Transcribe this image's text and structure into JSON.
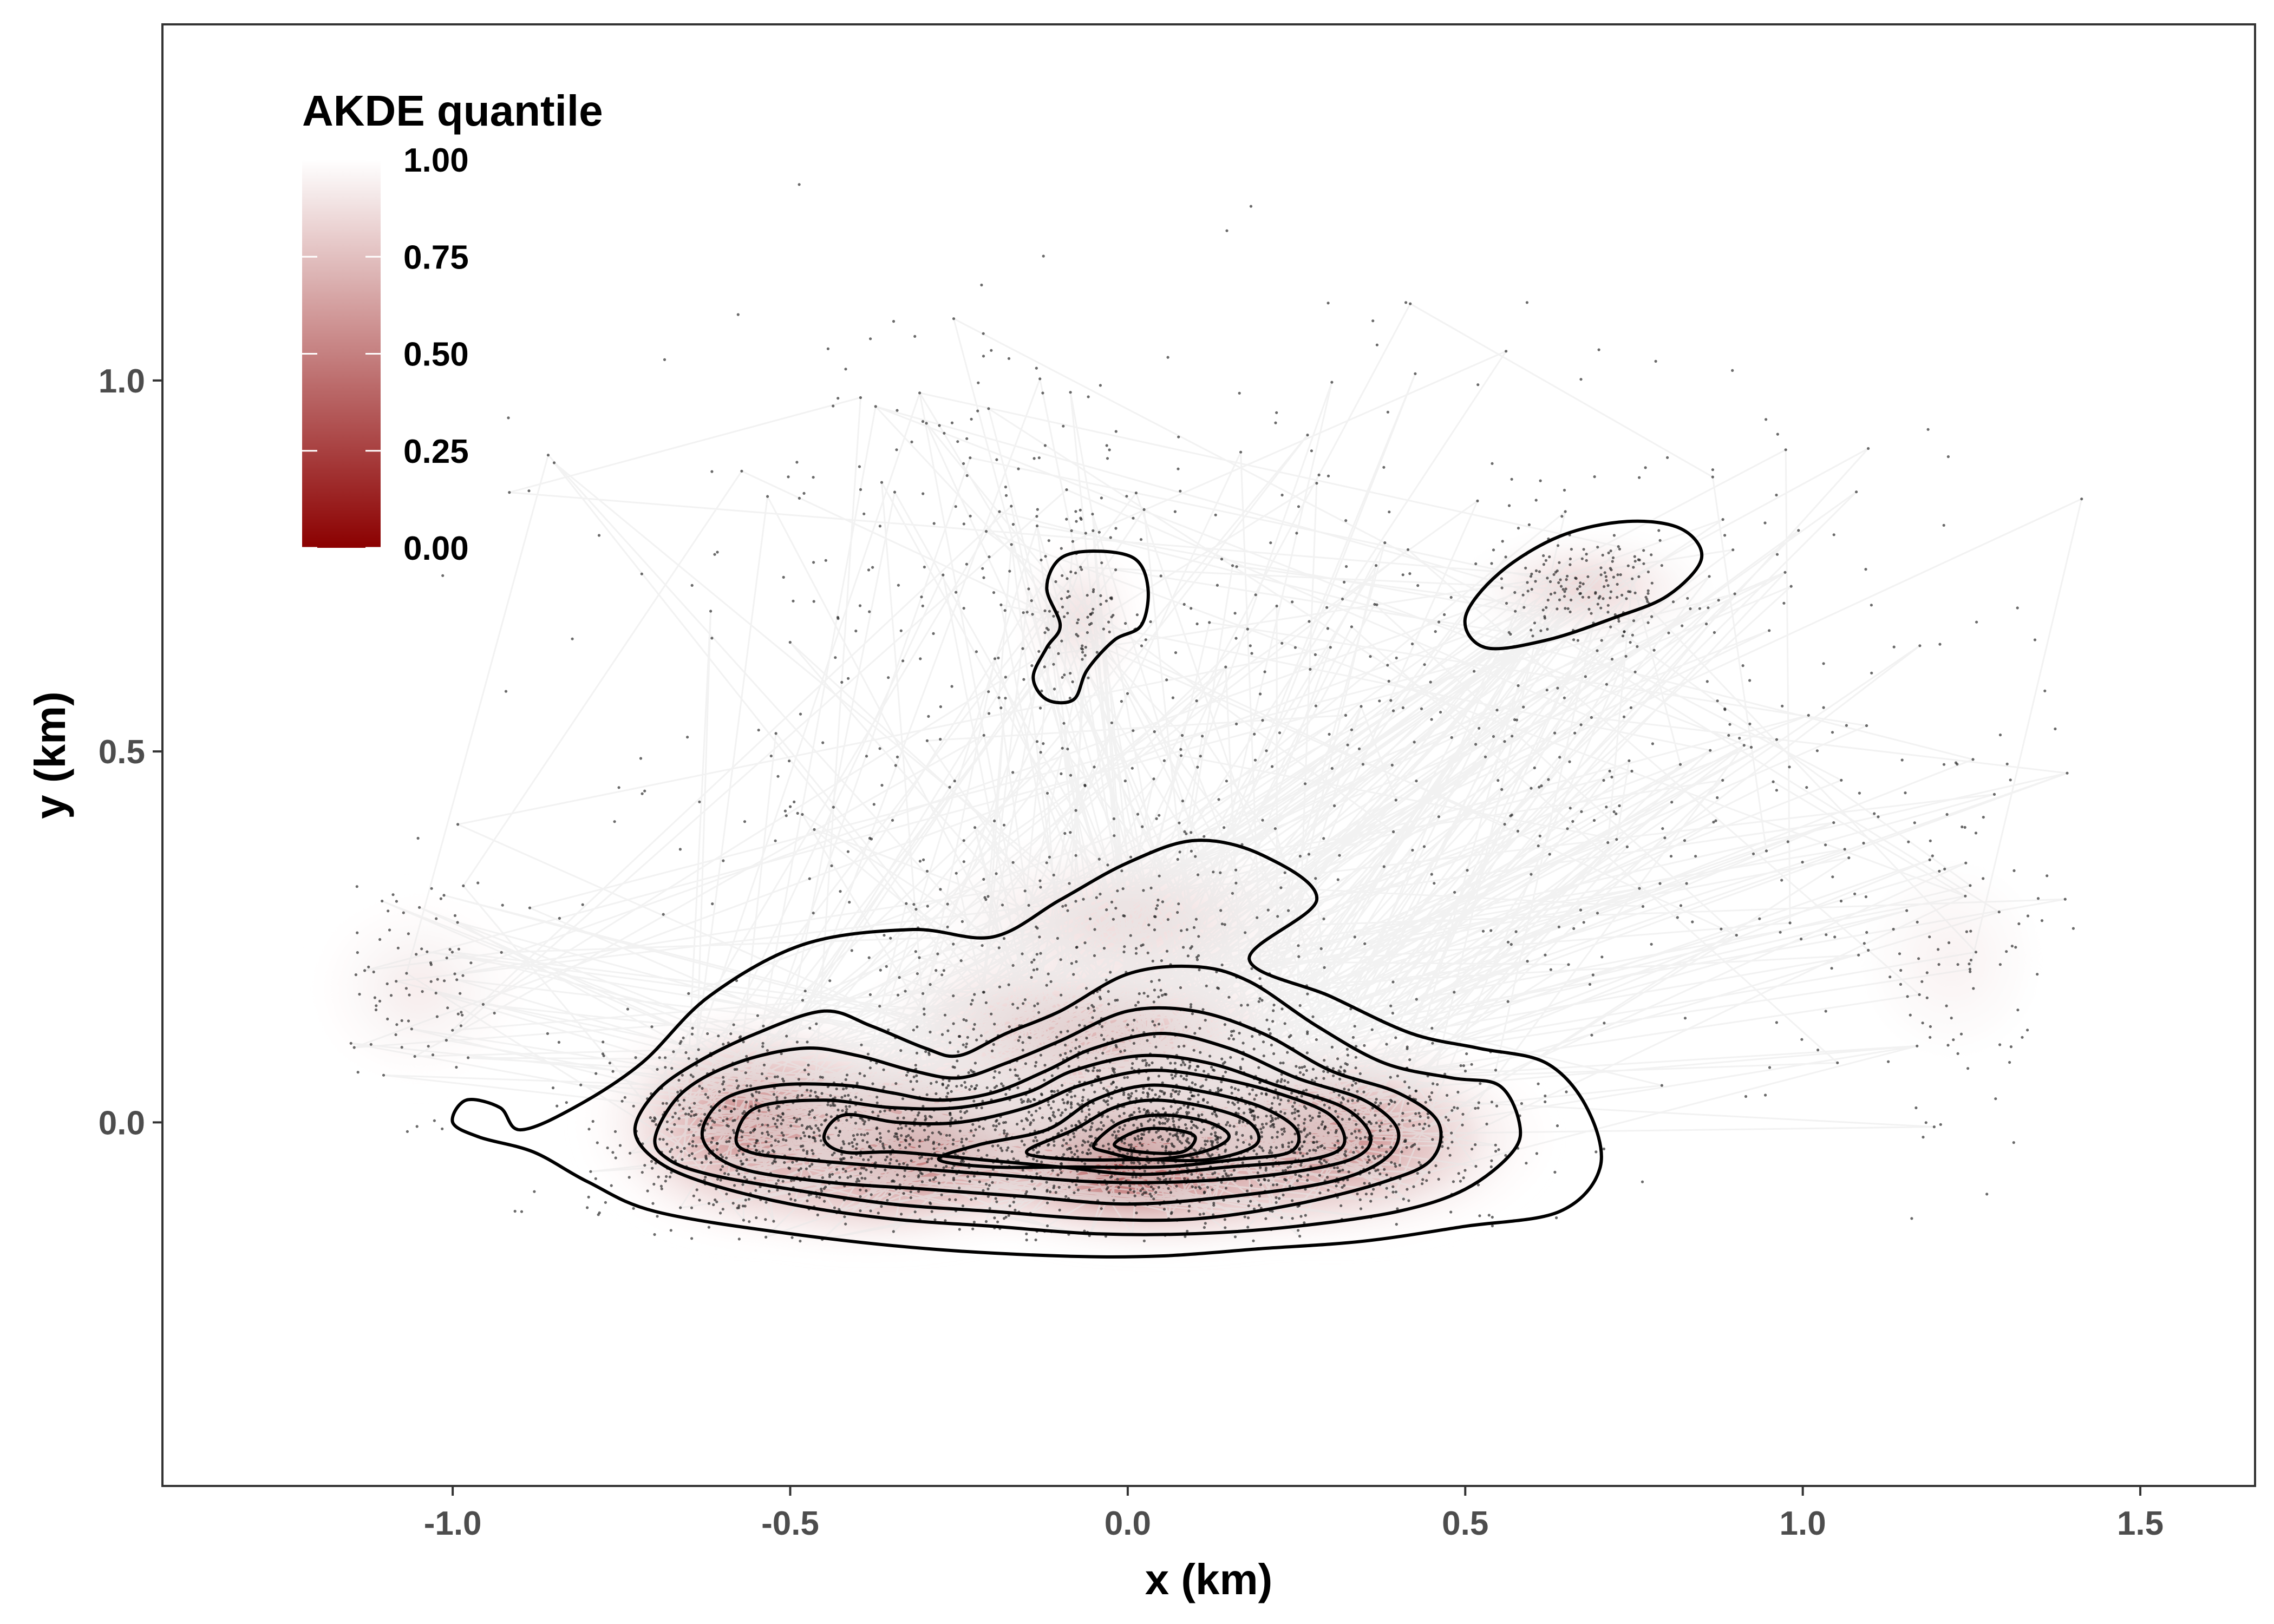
{
  "chart_data": {
    "type": "contour",
    "title": "",
    "xlabel": "x (km)",
    "ylabel": "y (km)",
    "xlim": [
      -1.43,
      1.67
    ],
    "ylim": [
      -0.49,
      1.48
    ],
    "x_ticks": [
      -1.0,
      -0.5,
      0.0,
      0.5,
      1.0,
      1.5
    ],
    "x_tick_labels": [
      "-1.0",
      "-0.5",
      "0.0",
      "0.5",
      "1.0",
      "1.5"
    ],
    "y_ticks": [
      0.0,
      0.5,
      1.0
    ],
    "y_tick_labels": [
      "0.0",
      "0.5",
      "1.0"
    ],
    "grid": false,
    "legend": {
      "title": "AKDE quantile",
      "placement": "top-left",
      "range": [
        0,
        1
      ],
      "breaks": [
        1.0,
        0.75,
        0.5,
        0.25,
        0.0
      ],
      "break_labels": [
        "1.00",
        "0.75",
        "0.50",
        "0.25",
        "0.00"
      ],
      "color_low": "#8b0000",
      "color_high": "#ffffff"
    },
    "density_hotspots": [
      {
        "x": 0.05,
        "y": -0.03,
        "sx": 0.26,
        "sy": 0.09,
        "weight": 1.0
      },
      {
        "x": -0.38,
        "y": -0.03,
        "sx": 0.22,
        "sy": 0.09,
        "weight": 0.7
      },
      {
        "x": -0.55,
        "y": 0.0,
        "sx": 0.16,
        "sy": 0.1,
        "weight": 0.45
      },
      {
        "x": 0.3,
        "y": -0.02,
        "sx": 0.2,
        "sy": 0.09,
        "weight": 0.45
      },
      {
        "x": -0.05,
        "y": 0.12,
        "sx": 0.22,
        "sy": 0.1,
        "weight": 0.3
      },
      {
        "x": 0.0,
        "y": 0.27,
        "sx": 0.2,
        "sy": 0.08,
        "weight": 0.14
      },
      {
        "x": 0.68,
        "y": 0.72,
        "sx": 0.12,
        "sy": 0.05,
        "weight": 0.16
      },
      {
        "x": -0.07,
        "y": 0.68,
        "sx": 0.06,
        "sy": 0.07,
        "weight": 0.12
      },
      {
        "x": -1.05,
        "y": 0.18,
        "sx": 0.1,
        "sy": 0.08,
        "weight": 0.07
      },
      {
        "x": 1.22,
        "y": 0.22,
        "sx": 0.1,
        "sy": 0.1,
        "weight": 0.05
      }
    ],
    "contours": [
      {
        "level": 0.95,
        "points": [
          [
            -0.9,
            -0.01
          ],
          [
            -0.82,
            0.02
          ],
          [
            -0.72,
            0.08
          ],
          [
            -0.62,
            0.17
          ],
          [
            -0.48,
            0.24
          ],
          [
            -0.32,
            0.26
          ],
          [
            -0.2,
            0.25
          ],
          [
            -0.1,
            0.3
          ],
          [
            0.0,
            0.35
          ],
          [
            0.1,
            0.38
          ],
          [
            0.2,
            0.36
          ],
          [
            0.28,
            0.3
          ],
          [
            0.18,
            0.22
          ],
          [
            0.3,
            0.17
          ],
          [
            0.42,
            0.12
          ],
          [
            0.52,
            0.1
          ],
          [
            0.62,
            0.08
          ],
          [
            0.68,
            0.02
          ],
          [
            0.7,
            -0.06
          ],
          [
            0.64,
            -0.12
          ],
          [
            0.5,
            -0.14
          ],
          [
            0.35,
            -0.16
          ],
          [
            0.2,
            -0.17
          ],
          [
            0.05,
            -0.18
          ],
          [
            -0.1,
            -0.18
          ],
          [
            -0.3,
            -0.17
          ],
          [
            -0.5,
            -0.15
          ],
          [
            -0.7,
            -0.12
          ],
          [
            -0.8,
            -0.08
          ],
          [
            -0.88,
            -0.04
          ],
          [
            -0.96,
            -0.02
          ],
          [
            -1.0,
            0.0
          ],
          [
            -0.98,
            0.03
          ],
          [
            -0.93,
            0.02
          ]
        ]
      },
      {
        "level": 0.95,
        "points": [
          [
            0.5,
            0.68
          ],
          [
            0.55,
            0.74
          ],
          [
            0.64,
            0.79
          ],
          [
            0.74,
            0.81
          ],
          [
            0.82,
            0.8
          ],
          [
            0.85,
            0.76
          ],
          [
            0.8,
            0.71
          ],
          [
            0.72,
            0.68
          ],
          [
            0.62,
            0.65
          ],
          [
            0.53,
            0.64
          ]
        ]
      },
      {
        "level": 0.95,
        "points": [
          [
            -0.12,
            0.72
          ],
          [
            -0.1,
            0.76
          ],
          [
            -0.05,
            0.77
          ],
          [
            0.01,
            0.76
          ],
          [
            0.03,
            0.72
          ],
          [
            0.02,
            0.67
          ],
          [
            -0.02,
            0.65
          ],
          [
            -0.06,
            0.61
          ],
          [
            -0.08,
            0.57
          ],
          [
            -0.12,
            0.57
          ],
          [
            -0.14,
            0.6
          ],
          [
            -0.12,
            0.64
          ],
          [
            -0.1,
            0.67
          ]
        ]
      },
      {
        "level": 0.75,
        "points": [
          [
            -0.73,
            -0.01
          ],
          [
            -0.7,
            0.04
          ],
          [
            -0.64,
            0.08
          ],
          [
            -0.55,
            0.12
          ],
          [
            -0.45,
            0.15
          ],
          [
            -0.38,
            0.13
          ],
          [
            -0.3,
            0.1
          ],
          [
            -0.25,
            0.09
          ],
          [
            -0.18,
            0.12
          ],
          [
            -0.1,
            0.15
          ],
          [
            0.0,
            0.2
          ],
          [
            0.1,
            0.21
          ],
          [
            0.18,
            0.19
          ],
          [
            0.28,
            0.13
          ],
          [
            0.38,
            0.08
          ],
          [
            0.48,
            0.06
          ],
          [
            0.55,
            0.05
          ],
          [
            0.58,
            0.0
          ],
          [
            0.57,
            -0.04
          ],
          [
            0.5,
            -0.09
          ],
          [
            0.4,
            -0.12
          ],
          [
            0.25,
            -0.14
          ],
          [
            0.1,
            -0.15
          ],
          [
            -0.05,
            -0.15
          ],
          [
            -0.2,
            -0.14
          ],
          [
            -0.35,
            -0.13
          ],
          [
            -0.5,
            -0.11
          ],
          [
            -0.63,
            -0.08
          ],
          [
            -0.7,
            -0.05
          ]
        ]
      },
      {
        "level": 0.65,
        "points": [
          [
            -0.7,
            -0.02
          ],
          [
            -0.66,
            0.04
          ],
          [
            -0.58,
            0.08
          ],
          [
            -0.48,
            0.1
          ],
          [
            -0.4,
            0.09
          ],
          [
            -0.32,
            0.07
          ],
          [
            -0.25,
            0.06
          ],
          [
            -0.18,
            0.08
          ],
          [
            -0.1,
            0.11
          ],
          [
            0.0,
            0.15
          ],
          [
            0.1,
            0.15
          ],
          [
            0.2,
            0.12
          ],
          [
            0.3,
            0.07
          ],
          [
            0.4,
            0.04
          ],
          [
            0.46,
            0.0
          ],
          [
            0.45,
            -0.05
          ],
          [
            0.38,
            -0.08
          ],
          [
            0.25,
            -0.11
          ],
          [
            0.1,
            -0.13
          ],
          [
            -0.05,
            -0.13
          ],
          [
            -0.2,
            -0.12
          ],
          [
            -0.35,
            -0.11
          ],
          [
            -0.5,
            -0.09
          ],
          [
            -0.62,
            -0.07
          ],
          [
            -0.68,
            -0.05
          ]
        ]
      },
      {
        "level": 0.55,
        "points": [
          [
            -0.63,
            -0.02
          ],
          [
            -0.6,
            0.03
          ],
          [
            -0.52,
            0.05
          ],
          [
            -0.42,
            0.05
          ],
          [
            -0.35,
            0.04
          ],
          [
            -0.28,
            0.03
          ],
          [
            -0.2,
            0.04
          ],
          [
            -0.12,
            0.07
          ],
          [
            -0.05,
            0.1
          ],
          [
            0.05,
            0.12
          ],
          [
            0.15,
            0.1
          ],
          [
            0.25,
            0.06
          ],
          [
            0.35,
            0.03
          ],
          [
            0.4,
            -0.01
          ],
          [
            0.38,
            -0.05
          ],
          [
            0.3,
            -0.08
          ],
          [
            0.15,
            -0.1
          ],
          [
            0.0,
            -0.11
          ],
          [
            -0.15,
            -0.1
          ],
          [
            -0.3,
            -0.09
          ],
          [
            -0.45,
            -0.08
          ],
          [
            -0.58,
            -0.06
          ]
        ]
      },
      {
        "level": 0.45,
        "points": [
          [
            -0.58,
            -0.02
          ],
          [
            -0.55,
            0.02
          ],
          [
            -0.45,
            0.03
          ],
          [
            -0.35,
            0.02
          ],
          [
            -0.25,
            0.02
          ],
          [
            -0.15,
            0.04
          ],
          [
            -0.08,
            0.07
          ],
          [
            0.02,
            0.09
          ],
          [
            0.12,
            0.08
          ],
          [
            0.22,
            0.05
          ],
          [
            0.32,
            0.02
          ],
          [
            0.36,
            -0.02
          ],
          [
            0.33,
            -0.05
          ],
          [
            0.22,
            -0.07
          ],
          [
            0.08,
            -0.08
          ],
          [
            -0.05,
            -0.08
          ],
          [
            -0.2,
            -0.07
          ],
          [
            -0.35,
            -0.06
          ],
          [
            -0.48,
            -0.05
          ],
          [
            -0.56,
            -0.04
          ]
        ]
      },
      {
        "level": 0.35,
        "points": [
          [
            -0.45,
            -0.02
          ],
          [
            -0.42,
            0.01
          ],
          [
            -0.34,
            0.0
          ],
          [
            -0.25,
            0.0
          ],
          [
            -0.15,
            0.02
          ],
          [
            -0.07,
            0.05
          ],
          [
            0.03,
            0.07
          ],
          [
            0.13,
            0.06
          ],
          [
            0.22,
            0.04
          ],
          [
            0.3,
            0.01
          ],
          [
            0.32,
            -0.03
          ],
          [
            0.27,
            -0.05
          ],
          [
            0.15,
            -0.06
          ],
          [
            0.02,
            -0.07
          ],
          [
            -0.1,
            -0.06
          ],
          [
            -0.22,
            -0.05
          ],
          [
            -0.34,
            -0.04
          ],
          [
            -0.42,
            -0.04
          ]
        ]
      },
      {
        "level": 0.25,
        "points": [
          [
            -0.28,
            -0.05
          ],
          [
            -0.22,
            -0.03
          ],
          [
            -0.12,
            -0.01
          ],
          [
            -0.05,
            0.03
          ],
          [
            0.03,
            0.05
          ],
          [
            0.12,
            0.04
          ],
          [
            0.2,
            0.02
          ],
          [
            0.25,
            -0.01
          ],
          [
            0.24,
            -0.04
          ],
          [
            0.16,
            -0.05
          ],
          [
            0.05,
            -0.06
          ],
          [
            -0.08,
            -0.06
          ],
          [
            -0.2,
            -0.06
          ]
        ]
      },
      {
        "level": 0.15,
        "points": [
          [
            -0.15,
            -0.04
          ],
          [
            -0.08,
            -0.01
          ],
          [
            -0.02,
            0.02
          ],
          [
            0.04,
            0.03
          ],
          [
            0.12,
            0.02
          ],
          [
            0.18,
            0.0
          ],
          [
            0.19,
            -0.03
          ],
          [
            0.12,
            -0.05
          ],
          [
            0.02,
            -0.05
          ],
          [
            -0.08,
            -0.05
          ]
        ]
      },
      {
        "level": 0.08,
        "points": [
          [
            -0.05,
            -0.03
          ],
          [
            -0.01,
            0.0
          ],
          [
            0.05,
            0.01
          ],
          [
            0.12,
            0.0
          ],
          [
            0.15,
            -0.02
          ],
          [
            0.11,
            -0.04
          ],
          [
            0.03,
            -0.05
          ],
          [
            -0.03,
            -0.04
          ]
        ]
      },
      {
        "level": 0.03,
        "points": [
          [
            -0.02,
            -0.03
          ],
          [
            0.02,
            -0.01
          ],
          [
            0.07,
            -0.01
          ],
          [
            0.1,
            -0.02
          ],
          [
            0.08,
            -0.04
          ],
          [
            0.02,
            -0.04
          ]
        ]
      }
    ],
    "point_clusters": [
      {
        "x": 0.05,
        "y": -0.02,
        "sx": 0.18,
        "sy": 0.06,
        "n": 1200
      },
      {
        "x": -0.4,
        "y": -0.03,
        "sx": 0.15,
        "sy": 0.06,
        "n": 600
      },
      {
        "x": -0.6,
        "y": 0.0,
        "sx": 0.1,
        "sy": 0.07,
        "n": 300
      },
      {
        "x": 0.3,
        "y": -0.01,
        "sx": 0.14,
        "sy": 0.07,
        "n": 350
      },
      {
        "x": -0.05,
        "y": 0.12,
        "sx": 0.18,
        "sy": 0.08,
        "n": 300
      },
      {
        "x": 0.0,
        "y": 0.27,
        "sx": 0.18,
        "sy": 0.07,
        "n": 110
      },
      {
        "x": 0.68,
        "y": 0.72,
        "sx": 0.08,
        "sy": 0.04,
        "n": 160
      },
      {
        "x": -0.07,
        "y": 0.7,
        "sx": 0.04,
        "sy": 0.06,
        "n": 90
      },
      {
        "x": -1.05,
        "y": 0.18,
        "sx": 0.07,
        "sy": 0.08,
        "n": 90
      },
      {
        "x": 1.22,
        "y": 0.2,
        "sx": 0.08,
        "sy": 0.12,
        "n": 70
      },
      {
        "x": 0.1,
        "y": 0.55,
        "sx": 0.45,
        "sy": 0.25,
        "n": 500
      },
      {
        "x": 0.95,
        "y": 0.45,
        "sx": 0.3,
        "sy": 0.25,
        "n": 200
      },
      {
        "x": -0.3,
        "y": 0.9,
        "sx": 0.15,
        "sy": 0.12,
        "n": 60
      }
    ],
    "track_color": "#e8e8e8",
    "point_color": "#1a1a1a",
    "contour_color": "#000000"
  }
}
